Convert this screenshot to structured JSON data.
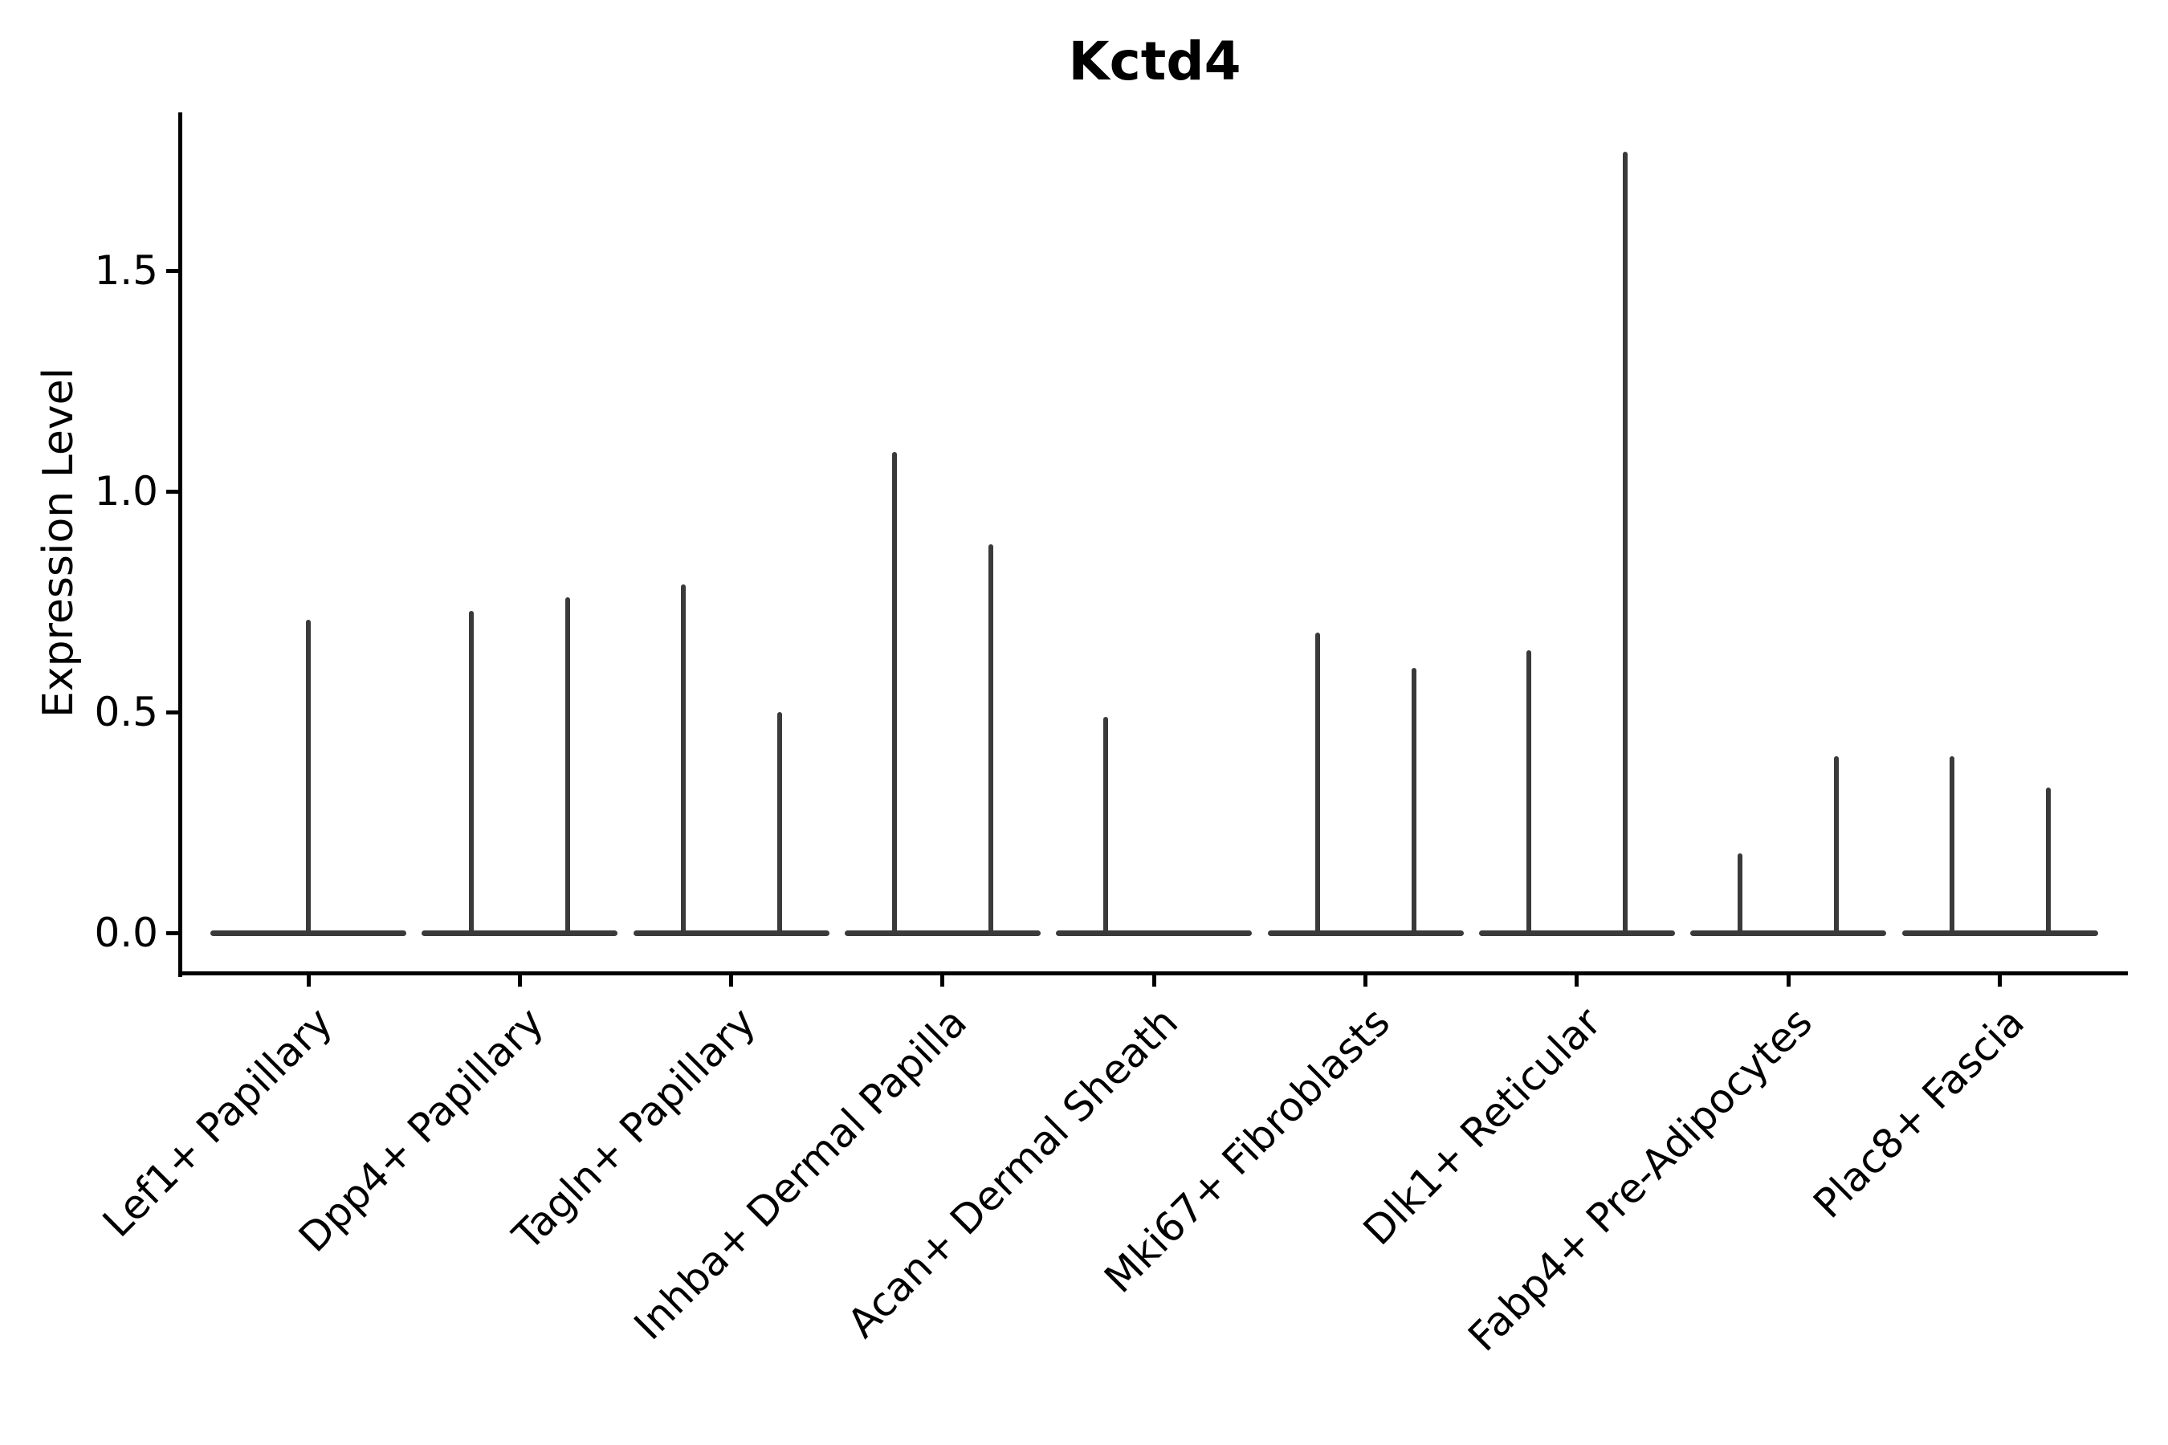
{
  "figure_title": "Kctd4",
  "chart_data": {
    "type": "violin",
    "title": "Kctd4",
    "subtitle": "",
    "xlabel": "",
    "ylabel": "Expression Level",
    "legend_position": "none",
    "grid": false,
    "background": "#ffffff",
    "axis_color": "#000000",
    "violin_color": "#3a3a3a",
    "ylim": [
      -0.09,
      1.86
    ],
    "ytick_labels": [
      "0.0",
      "0.5",
      "1.0",
      "1.5"
    ],
    "ytick_values": [
      0.0,
      0.5,
      1.0,
      1.5
    ],
    "categories": [
      "Lef1+ Papillary",
      "Dpp4+ Papillary",
      "Tagln+ Papillary",
      "Inhba+ Dermal Papilla",
      "Acan+ Dermal Sheath",
      "Mki67+ Fibroblasts",
      "Dlk1+ Reticular",
      "Fabp4+ Pre-Adipocytes",
      "Plac8+ Fascia"
    ],
    "series_note": "Each violin is collapsed to a flat line at expression 0 with a thin spike rising to the maximum expression value; categories may contain one centered violin or two side-by-side sub-violins.",
    "series": [
      {
        "category": "Lef1+ Papillary",
        "violins": [
          {
            "position": "center",
            "max_expression": 0.71
          }
        ]
      },
      {
        "category": "Dpp4+ Papillary",
        "violins": [
          {
            "position": "left",
            "max_expression": 0.73
          },
          {
            "position": "right",
            "max_expression": 0.76
          }
        ]
      },
      {
        "category": "Tagln+ Papillary",
        "violins": [
          {
            "position": "left",
            "max_expression": 0.79
          },
          {
            "position": "right",
            "max_expression": 0.5
          }
        ]
      },
      {
        "category": "Inhba+ Dermal Papilla",
        "violins": [
          {
            "position": "left",
            "max_expression": 1.09
          },
          {
            "position": "right",
            "max_expression": 0.88
          }
        ]
      },
      {
        "category": "Acan+ Dermal Sheath",
        "violins": [
          {
            "position": "left",
            "max_expression": 0.49
          }
        ]
      },
      {
        "category": "Mki67+ Fibroblasts",
        "violins": [
          {
            "position": "left",
            "max_expression": 0.68
          },
          {
            "position": "right",
            "max_expression": 0.6
          }
        ]
      },
      {
        "category": "Dlk1+ Reticular",
        "violins": [
          {
            "position": "left",
            "max_expression": 0.64
          },
          {
            "position": "right",
            "max_expression": 1.77
          }
        ]
      },
      {
        "category": "Fabp4+ Pre-Adipocytes",
        "violins": [
          {
            "position": "left",
            "max_expression": 0.18
          },
          {
            "position": "right",
            "max_expression": 0.4
          }
        ]
      },
      {
        "category": "Plac8+ Fascia",
        "violins": [
          {
            "position": "left",
            "max_expression": 0.4
          },
          {
            "position": "right",
            "max_expression": 0.33
          }
        ]
      }
    ]
  }
}
